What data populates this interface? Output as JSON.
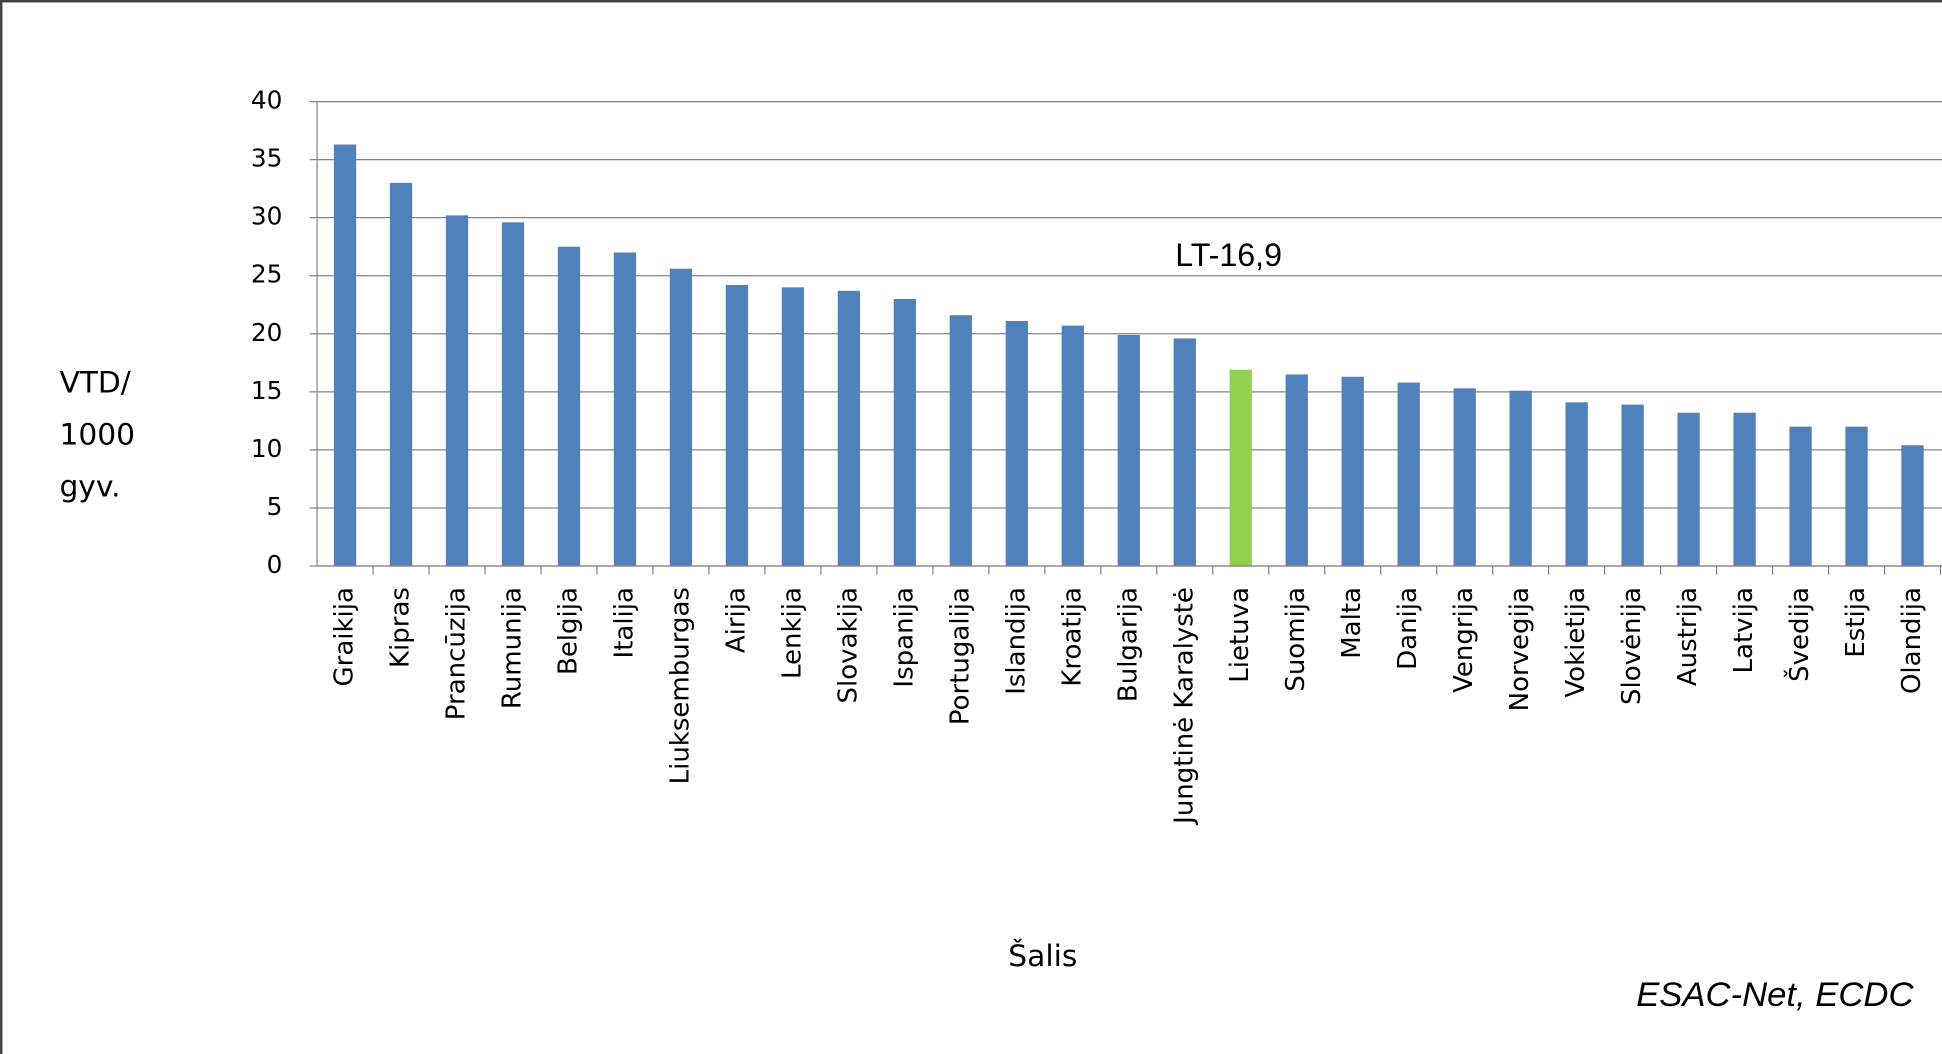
{
  "chart_data": {
    "type": "bar",
    "categories": [
      "Graikija",
      "Kipras",
      "Prancūzija",
      "Rumunija",
      "Belgija",
      "Italija",
      "Liuksemburgas",
      "Airija",
      "Lenkija",
      "Slovakija",
      "Ispanija",
      "Portugalija",
      "Islandija",
      "Kroatija",
      "Bulgarija",
      "Jungtinė Karalystė",
      "Lietuva",
      "Suomija",
      "Malta",
      "Danija",
      "Vengrija",
      "Norvegija",
      "Vokietija",
      "Slovėnija",
      "Austrija",
      "Latvija",
      "Švedija",
      "Estija",
      "Olandija"
    ],
    "values": [
      36.3,
      33.0,
      30.2,
      29.6,
      27.5,
      27.0,
      25.6,
      24.2,
      24.0,
      23.7,
      23.0,
      21.6,
      21.1,
      20.7,
      19.9,
      19.6,
      16.9,
      16.5,
      16.3,
      15.8,
      15.3,
      15.1,
      14.1,
      13.9,
      13.2,
      13.2,
      12.0,
      12.0,
      10.4
    ],
    "colors": [
      "#4f81bd",
      "#4f81bd",
      "#4f81bd",
      "#4f81bd",
      "#4f81bd",
      "#4f81bd",
      "#4f81bd",
      "#4f81bd",
      "#4f81bd",
      "#4f81bd",
      "#4f81bd",
      "#4f81bd",
      "#4f81bd",
      "#4f81bd",
      "#4f81bd",
      "#4f81bd",
      "#92d050",
      "#4f81bd",
      "#4f81bd",
      "#4f81bd",
      "#4f81bd",
      "#4f81bd",
      "#4f81bd",
      "#4f81bd",
      "#4f81bd",
      "#4f81bd",
      "#4f81bd",
      "#4f81bd",
      "#4f81bd"
    ],
    "ylabel_lines": [
      "VTD/",
      "1000",
      "gyv."
    ],
    "xlabel": "Šalis",
    "annotation": "LT-16,9",
    "source": "ESAC-Net, ECDC",
    "ylim": [
      0,
      40
    ],
    "yticks": [
      0,
      5,
      10,
      15,
      20,
      25,
      30,
      35,
      40
    ],
    "grid": true
  }
}
